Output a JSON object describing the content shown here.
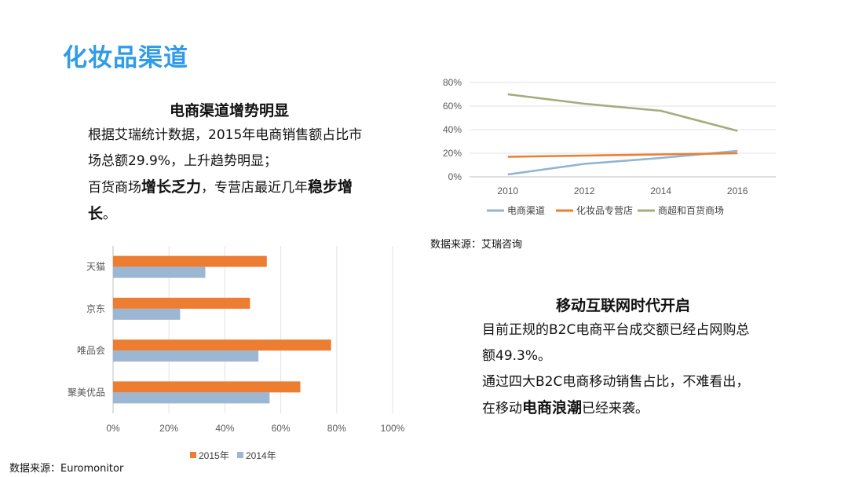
{
  "title": "化妆品渠道",
  "section_ecommerce": {
    "heading": "电商渠道增势明显",
    "line1": "根据艾瑞统计数据，2015年电商销售额占比市",
    "line2": "场总额29.9%，上升趋势明显；",
    "line3_a": "百货商场",
    "line3_b": "增长乏力",
    "line3_c": "，专营店最近几年",
    "line3_d": "稳步增",
    "line4_a": "长",
    "line4_b": "。"
  },
  "section_mobile": {
    "heading": "移动互联网时代开启",
    "line1": "目前正规的B2C电商平台成交额已经占网购总",
    "line2": "额49.3%。",
    "line3": "通过四大B2C电商移动销售占比，不难看出，",
    "line4_a": "在移动",
    "line4_b": "电商浪潮",
    "line4_c": "已经来袭。"
  },
  "source_line": "数据来源：艾瑞咨询",
  "source_bar": "数据来源：Euromonitor",
  "chart_data": [
    {
      "type": "line",
      "x": [
        2010,
        2012,
        2014,
        2016
      ],
      "xticks": [
        "2010",
        "2012",
        "2014",
        "2016"
      ],
      "xlim": [
        2009,
        2017
      ],
      "ylim": [
        0,
        80
      ],
      "yticks": [
        "0%",
        "20%",
        "40%",
        "60%",
        "80%"
      ],
      "grid": true,
      "legend": "bottom",
      "series": [
        {
          "name": "电商渠道",
          "color": "#8fb4d6",
          "x": [
            2010,
            2012,
            2014,
            2016
          ],
          "values": [
            2,
            11,
            16,
            22
          ]
        },
        {
          "name": "化妆品专营店",
          "color": "#ed7d31",
          "x": [
            2010,
            2012,
            2014,
            2016
          ],
          "values": [
            17,
            18,
            19,
            20
          ]
        },
        {
          "name": "商超和百货商场",
          "color": "#a5ac7e",
          "x": [
            2010,
            2012,
            2014,
            2016
          ],
          "values": [
            70,
            62,
            56,
            39
          ]
        }
      ]
    },
    {
      "type": "bar",
      "orientation": "horizontal",
      "categories": [
        "天猫",
        "京东",
        "唯品会",
        "聚美优品"
      ],
      "xlim": [
        0,
        100
      ],
      "xticks": [
        "0%",
        "20%",
        "40%",
        "60%",
        "80%",
        "100%"
      ],
      "grid": true,
      "legend": "bottom",
      "series": [
        {
          "name": "2015年",
          "color": "#ed7d31",
          "values": [
            55,
            49,
            78,
            67
          ]
        },
        {
          "name": "2014年",
          "color": "#9bb7d4",
          "values": [
            33,
            24,
            52,
            56
          ]
        }
      ]
    }
  ]
}
